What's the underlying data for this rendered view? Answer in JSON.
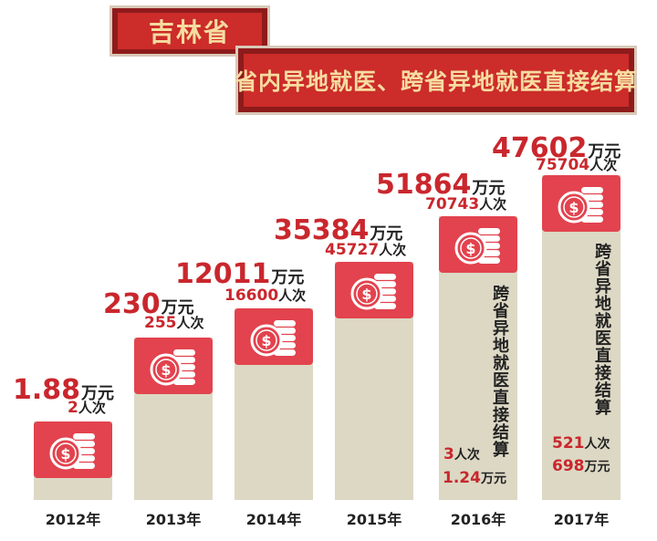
{
  "header": {
    "province": "吉林省",
    "headline": "省内异地就医、跨省异地就医直接结算"
  },
  "units": {
    "amount": "万元",
    "visits": "人次"
  },
  "chart_data": {
    "type": "bar",
    "categories": [
      "2012年",
      "2013年",
      "2014年",
      "2015年",
      "2016年",
      "2017年"
    ],
    "series": [
      {
        "values": [
          1.88,
          230,
          12011,
          35384,
          51864,
          47602
        ],
        "unit": "万元"
      },
      {
        "values": [
          2,
          255,
          16600,
          45727,
          70743,
          75704
        ],
        "unit": "人次"
      }
    ],
    "labels": {
      "amount": [
        "1.88",
        "230",
        "12011",
        "35384",
        "51864",
        "47602"
      ],
      "visits": [
        "2",
        "255",
        "16600",
        "45727",
        "70743",
        "75704"
      ]
    },
    "cross_province": {
      "label": "跨省异地就医直接结算",
      "entries": [
        {
          "year": "2016年",
          "visits": "3",
          "amount": "1.24"
        },
        {
          "year": "2017年",
          "visits": "521",
          "amount": "698"
        }
      ]
    },
    "colors": {
      "bar": "#dcd8c4",
      "cap": "#e2434e",
      "value": "#c9272d"
    }
  }
}
